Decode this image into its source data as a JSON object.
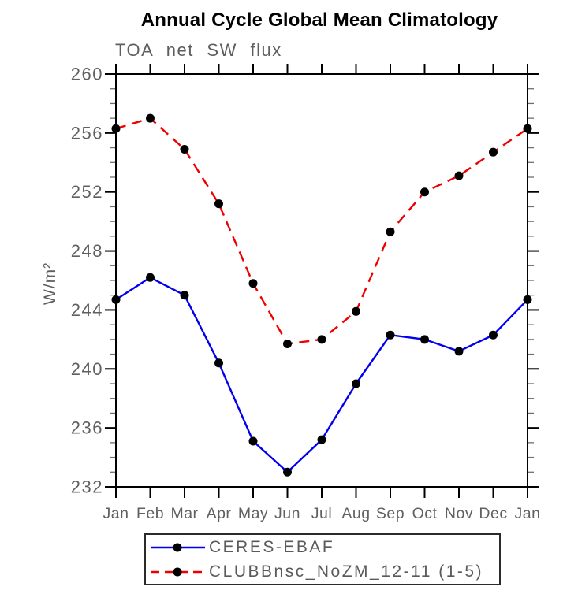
{
  "chart_data": {
    "type": "line",
    "title": "Annual Cycle Global Mean Climatology",
    "subtitle": "TOA net SW flux",
    "ylabel": "W/m²",
    "xlabel": "",
    "categories": [
      "Jan",
      "Feb",
      "Mar",
      "Apr",
      "May",
      "Jun",
      "Jul",
      "Aug",
      "Sep",
      "Oct",
      "Nov",
      "Dec",
      "Jan"
    ],
    "ylim": [
      232,
      260
    ],
    "ytick_major": [
      232,
      236,
      240,
      244,
      248,
      252,
      256,
      260
    ],
    "ytick_minor_step": 1,
    "grid": false,
    "legend_position": "bottom",
    "series": [
      {
        "name": "CERES-EBAF",
        "color": "#0000ee",
        "line_style": "solid",
        "marker": "filled-circle",
        "marker_color": "#000000",
        "values": [
          244.7,
          246.2,
          245.0,
          240.4,
          235.1,
          233.0,
          235.2,
          239.0,
          242.3,
          242.0,
          241.2,
          242.3,
          244.7
        ]
      },
      {
        "name": "CLUBBnsc_NoZM_12-11 (1-5)",
        "color": "#ee0000",
        "line_style": "dashed",
        "marker": "filled-circle",
        "marker_color": "#000000",
        "values": [
          256.3,
          257.0,
          254.9,
          251.2,
          245.8,
          241.7,
          242.0,
          243.9,
          249.3,
          252.0,
          253.1,
          254.7,
          256.3
        ]
      }
    ],
    "axis_color": "#000000",
    "tick_label_color": "#606060",
    "title_color": "#000000"
  }
}
